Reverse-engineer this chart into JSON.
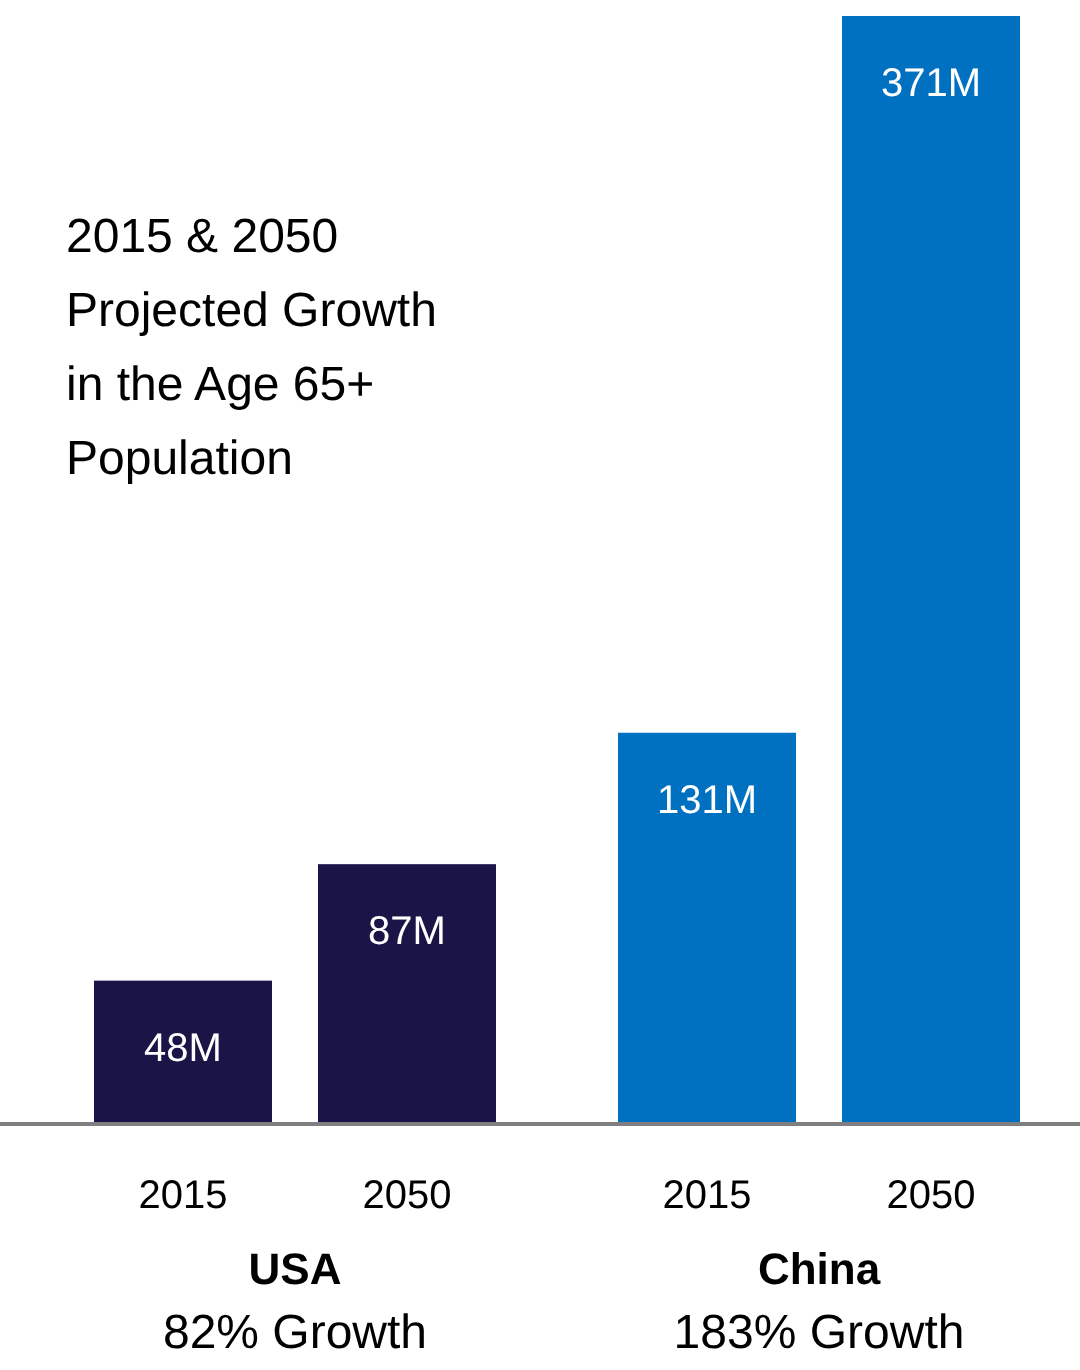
{
  "chart_data": {
    "type": "bar",
    "title": "2015 & 2050 Projected Growth in the Age 65+ Population",
    "categories": [
      "2015",
      "2050",
      "2015",
      "2050"
    ],
    "values": [
      48,
      87,
      131,
      371
    ],
    "value_labels": [
      "48M",
      "87M",
      "131M",
      "371M"
    ],
    "colors": [
      "#1b1547",
      "#1b1547",
      "#0070c0",
      "#0070c0"
    ],
    "annotations": [
      "USA",
      "82% Growth",
      "China",
      "183% Growth"
    ]
  }
}
